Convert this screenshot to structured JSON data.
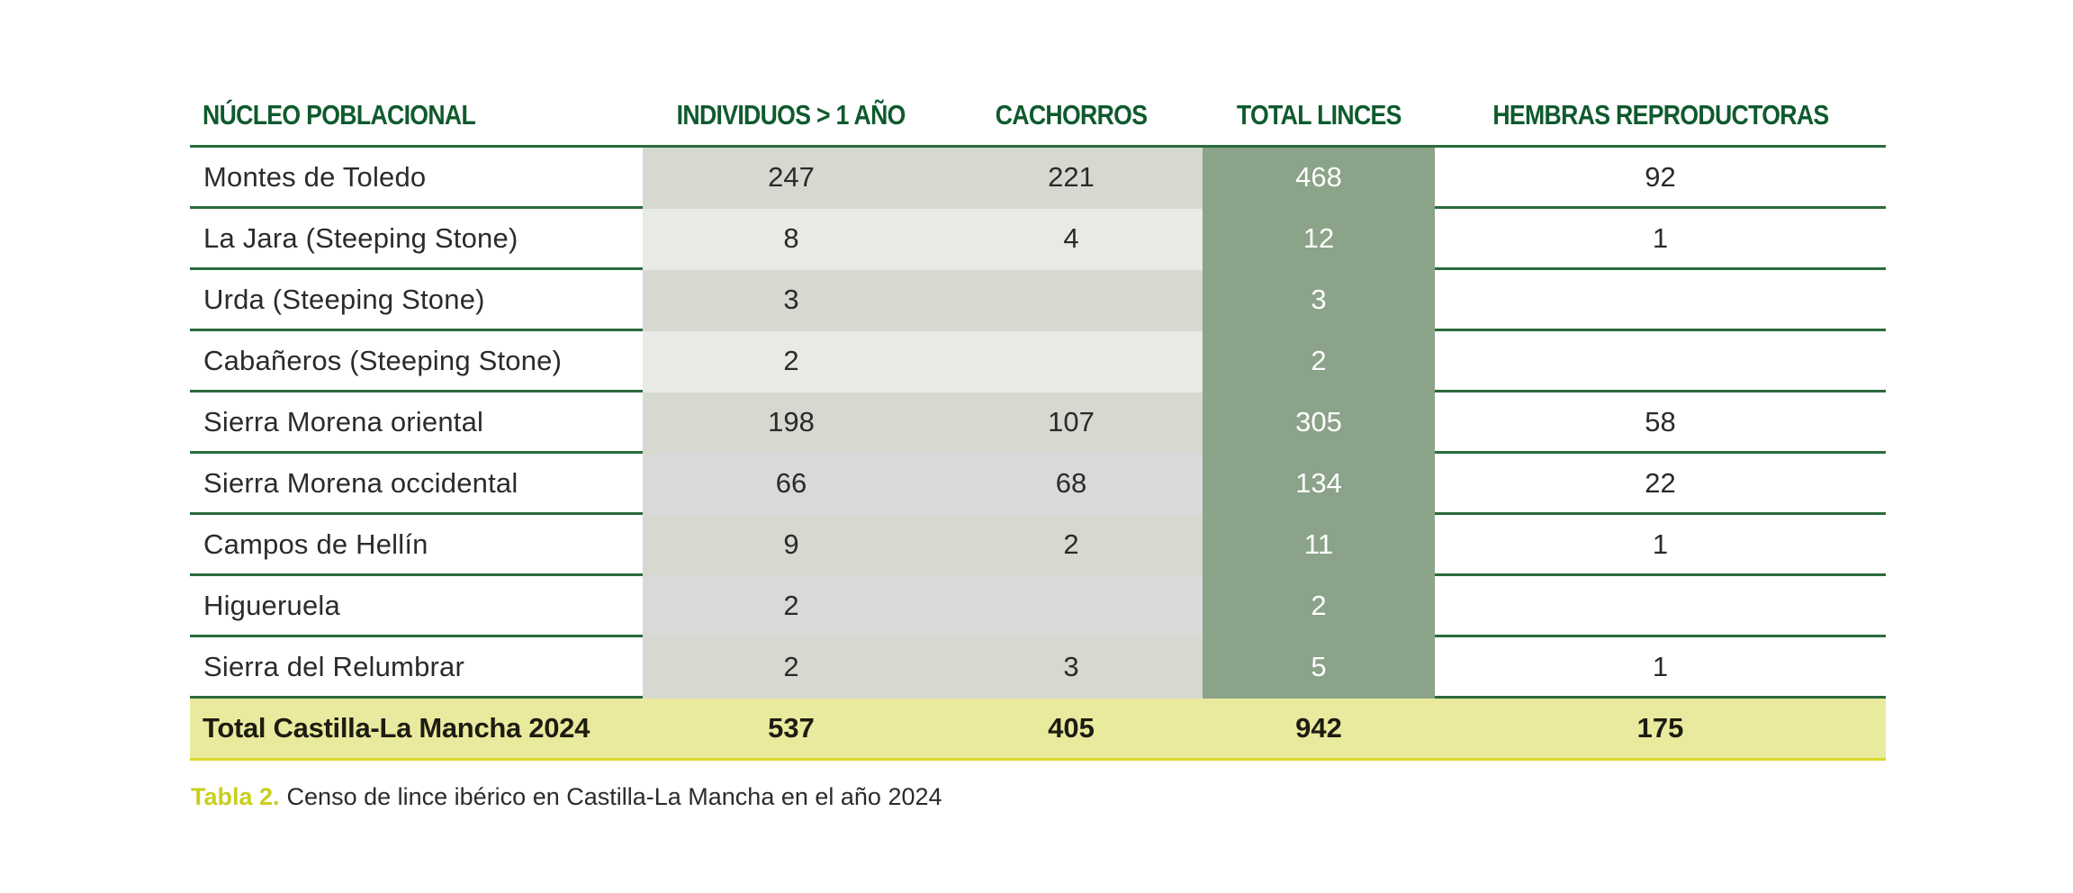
{
  "table": {
    "headers": [
      "NÚCLEO POBLACIONAL",
      "INDIVIDUOS > 1 AÑO",
      "CACHORROS",
      "TOTAL LINCES",
      "HEMBRAS REPRODUCTORAS"
    ],
    "rows": [
      {
        "nucleo": "Montes de Toledo",
        "individuos": "247",
        "cachorros": "221",
        "total": "468",
        "hembras": "92"
      },
      {
        "nucleo": "La Jara (Steeping Stone)",
        "individuos": "8",
        "cachorros": "4",
        "total": "12",
        "hembras": "1"
      },
      {
        "nucleo": "Urda (Steeping Stone)",
        "individuos": "3",
        "cachorros": "",
        "total": "3",
        "hembras": ""
      },
      {
        "nucleo": "Cabañeros (Steeping Stone)",
        "individuos": "2",
        "cachorros": "",
        "total": "2",
        "hembras": ""
      },
      {
        "nucleo": "Sierra Morena oriental",
        "individuos": "198",
        "cachorros": "107",
        "total": "305",
        "hembras": "58"
      },
      {
        "nucleo": "Sierra Morena occidental",
        "individuos": "66",
        "cachorros": "68",
        "total": "134",
        "hembras": "22"
      },
      {
        "nucleo": "Campos de Hellín",
        "individuos": "9",
        "cachorros": "2",
        "total": "11",
        "hembras": "1"
      },
      {
        "nucleo": "Higueruela",
        "individuos": "2",
        "cachorros": "",
        "total": "2",
        "hembras": ""
      },
      {
        "nucleo": "Sierra del Relumbrar",
        "individuos": "2",
        "cachorros": "3",
        "total": "5",
        "hembras": "1"
      }
    ],
    "total_row": {
      "nucleo": "Total Castilla-La Mancha 2024",
      "individuos": "537",
      "cachorros": "405",
      "total": "942",
      "hembras": "175"
    }
  },
  "caption": {
    "label": "Tabla 2.",
    "text": "Censo de lince ibérico en Castilla-La Mancha en el año 2024"
  },
  "colors": {
    "header_text": "#0f5a2d",
    "rule": "#2b6a3c",
    "total_column": "#8ba388",
    "band_dark": "#d5d9d0",
    "band_light": "#e8eae5",
    "band_gray": "#d9d9d8",
    "total_row_bg": "#eaea9e",
    "caption_label": "#c9cf1e"
  }
}
